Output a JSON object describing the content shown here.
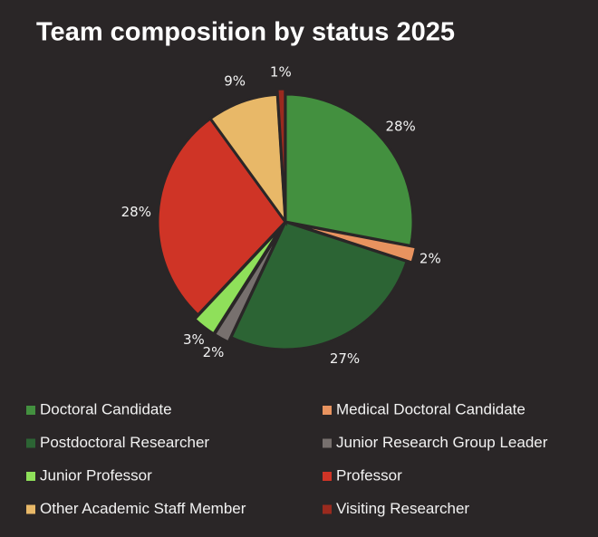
{
  "chart_data": {
    "type": "pie",
    "title": "Team composition by status 2025",
    "categories": [
      "Doctoral Candidate",
      "Medical Doctoral Candidate",
      "Postdoctoral Researcher",
      "Junior Research Group Leader",
      "Junior Professor",
      "Professor",
      "Other Academic Staff Member",
      "Visiting Researcher"
    ],
    "values": [
      28,
      2,
      27,
      2,
      3,
      28,
      9,
      1
    ],
    "value_labels": [
      "28%",
      "2%",
      "27%",
      "2%",
      "3%",
      "28%",
      "9%",
      "1%"
    ],
    "colors": [
      "#43903f",
      "#e8935f",
      "#2c6434",
      "#77706e",
      "#8fe05a",
      "#cf3426",
      "#e8b868",
      "#9a2a1e"
    ]
  }
}
